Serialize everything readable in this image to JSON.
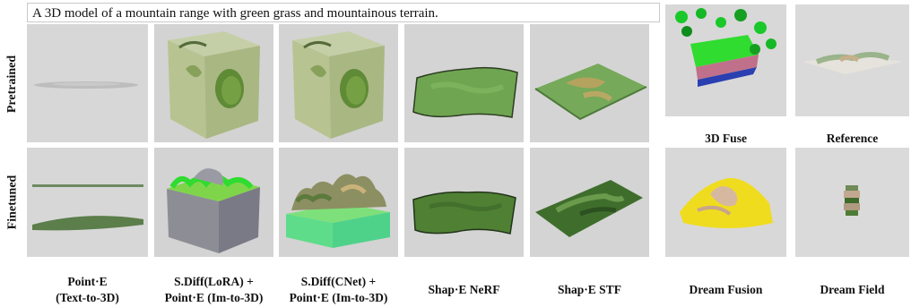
{
  "prompt": "A 3D model of a mountain range with green grass and mountainous terrain.",
  "row_labels": {
    "pretrained": "Pretrained",
    "finetuned": "Finetuned"
  },
  "methods": [
    {
      "line1": "Point·E",
      "line2": "(Text-to-3D)"
    },
    {
      "line1": "S.Diff(LoRA) +",
      "line2": "Point·E (Im-to-3D)"
    },
    {
      "line1": "S.Diff(CNet) +",
      "line2": "Point·E (Im-to-3D)"
    },
    {
      "line1": "Shap·E NeRF",
      "line2": ""
    },
    {
      "line1": "Shap·E STF",
      "line2": ""
    }
  ],
  "baselines": {
    "fuse": "3D Fuse",
    "reference": "Reference",
    "dream_fusion": "Dream Fusion",
    "dream_field": "Dream Field"
  }
}
